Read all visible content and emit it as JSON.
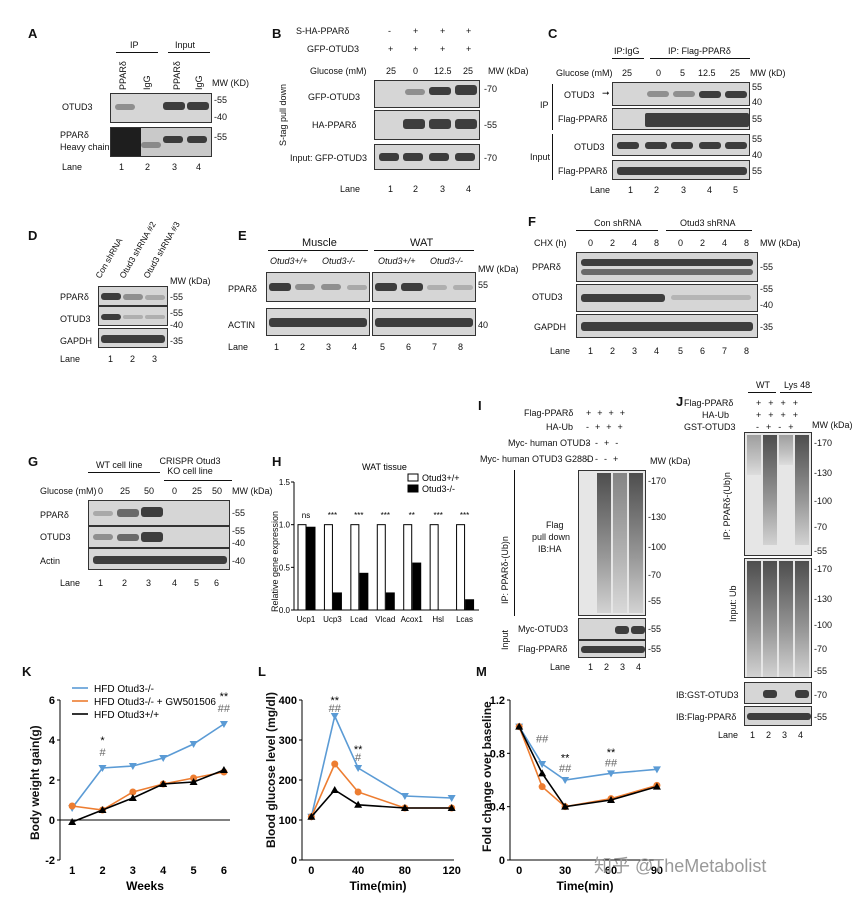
{
  "panels": [
    "A",
    "B",
    "C",
    "D",
    "E",
    "F",
    "G",
    "H",
    "I",
    "J",
    "K",
    "L",
    "M"
  ],
  "A": {
    "ip": "IP",
    "input": "Input",
    "cols": [
      "PPARδ",
      "IgG",
      "PPARδ",
      "IgG"
    ],
    "mw": "MW (KD)",
    "rows": [
      "OTUD3",
      "PPARδ",
      "Heavy chain"
    ],
    "mw55": "-55",
    "mw40": "-40",
    "mw55b": "-55",
    "lane": "Lane",
    "lanes": [
      "1",
      "2",
      "3",
      "4"
    ]
  },
  "B": {
    "r1": "S-HA-PPARδ",
    "r1v": [
      "-",
      "+",
      "+",
      "+"
    ],
    "r2": "GFP-OTUD3",
    "r2v": [
      "+",
      "+",
      "+",
      "+"
    ],
    "glu": "Glucose (mM)",
    "gluv": [
      "25",
      "0",
      "12.5",
      "25"
    ],
    "mw": "MW (kDa)",
    "side": "S-tag pull down",
    "rows": [
      "GFP-OTUD3",
      "HA-PPARδ",
      "Input:   GFP-OTUD3"
    ],
    "mws": [
      "-70",
      "-55",
      "-70"
    ],
    "lane": "Lane",
    "lanes": [
      "1",
      "2",
      "3",
      "4"
    ]
  },
  "C": {
    "ipigg": "IP:IgG",
    "ipflag": "IP: Flag-PPARδ",
    "glu": "Glucose (mM)",
    "gluv": [
      "25",
      "0",
      "5",
      "12.5",
      "25"
    ],
    "mw": "MW (kD)",
    "ip": "IP",
    "input": "Input",
    "rows": [
      "OTUD3",
      "Flag-PPARδ",
      "OTUD3",
      "Flag-PPARδ"
    ],
    "mws": [
      "55",
      "40",
      "55",
      "55",
      "40",
      "55"
    ],
    "lane": "Lane",
    "lanes": [
      "1",
      "2",
      "3",
      "4",
      "5"
    ]
  },
  "D": {
    "cols": [
      "Con shRNA",
      "Otud3 shRNA #2",
      "Otud3 shRNA #3"
    ],
    "mw": "MW (kDa)",
    "rows": [
      "PPARδ",
      "OTUD3",
      "GAPDH"
    ],
    "mws": [
      "-55",
      "-55",
      "-40",
      "-35"
    ],
    "lane": "Lane",
    "lanes": [
      "1",
      "2",
      "3"
    ]
  },
  "E": {
    "muscle": "Muscle",
    "wat": "WAT",
    "geno": [
      "Otud3+/+",
      "Otud3-/-",
      "Otud3+/+",
      "Otud3-/-"
    ],
    "mw": "MW (kDa)",
    "rows": [
      "PPARδ",
      "ACTIN"
    ],
    "mws": [
      "55",
      "40"
    ],
    "lane": "Lane",
    "lanes": [
      "1",
      "2",
      "3",
      "4",
      "5",
      "6",
      "7",
      "8"
    ]
  },
  "F": {
    "con": "Con shRNA",
    "otud": "Otud3 shRNA",
    "chx": "CHX (h)",
    "chxv": [
      "0",
      "2",
      "4",
      "8",
      "0",
      "2",
      "4",
      "8"
    ],
    "mw": "MW (kDa)",
    "rows": [
      "PPARδ",
      "OTUD3",
      "GAPDH"
    ],
    "mws": [
      "-55",
      "-55",
      "-40",
      "-35"
    ],
    "lane": "Lane",
    "lanes": [
      "1",
      "2",
      "3",
      "4",
      "5",
      "6",
      "7",
      "8"
    ]
  },
  "G": {
    "wt": "WT cell line",
    "ko": "CRISPR Otud3 KO cell line",
    "glu": "Glucose (mM)",
    "gluv": [
      "0",
      "25",
      "50",
      "0",
      "25",
      "50"
    ],
    "mw": "MW (kDa)",
    "rows": [
      "PPARδ",
      "OTUD3",
      "Actin"
    ],
    "mws": [
      "-55",
      "-55",
      "-40",
      "-40"
    ],
    "lane": "Lane",
    "lanes": [
      "1",
      "2",
      "3",
      "4",
      "5",
      "6"
    ]
  },
  "H": {
    "title": "WAT tissue",
    "ylabel": "Relative gene expression",
    "sig": [
      "ns",
      "***",
      "***",
      "***",
      "**",
      "***",
      "***"
    ]
  },
  "I": {
    "r1": "Flag-PPARδ",
    "r2": "HA-Ub",
    "r3": "Myc- human OTUD3",
    "r4": "Myc- human OTUD3 G288D",
    "mw": "MW (kDa)",
    "sidelabel": "IP: PPARδ-(Ub)n",
    "flag": "Flag",
    "pull": "pull down",
    "ib": "IB:HA",
    "input": "Input",
    "rows": [
      "Myc-OTUD3",
      "Flag-PPARδ"
    ],
    "mws": [
      "-170",
      "-130",
      "-100",
      "-70",
      "-55",
      "-55",
      "-55"
    ],
    "lane": "Lane",
    "lanes": [
      "1",
      "2",
      "3",
      "4"
    ]
  },
  "J": {
    "wt": "WT",
    "lys": "Lys 48",
    "r1": "Flag-PPARδ",
    "r2": "HA-Ub",
    "r3": "GST-OTUD3",
    "mw": "MW (kDa)",
    "side1": "IP: PPARδ-(Ub)n",
    "side2": "Input: Ub",
    "rows": [
      "IB:GST-OTUD3",
      "IB:Flag-PPARδ"
    ],
    "mws": [
      "-170",
      "-130",
      "-100",
      "-70",
      "-55",
      "-170",
      "-130",
      "-100",
      "-70",
      "-55",
      "-70",
      "-55"
    ],
    "lane": "Lane",
    "lanes": [
      "1",
      "2",
      "3",
      "4"
    ]
  },
  "K": {
    "ylabel": "Body weight gain(g)",
    "xlabel": "Weeks",
    "legend": [
      "HFD Otud3-/-",
      "HFD Otud3-/- + GW501506",
      "HFD Otud3+/+"
    ],
    "ann": [
      "*",
      "#",
      "**",
      "##"
    ]
  },
  "L": {
    "ylabel": "Blood glucose level (mg/dl)",
    "xlabel": "Time(min)",
    "ann": [
      "**",
      "##",
      "**",
      "#"
    ]
  },
  "M": {
    "ylabel": "Fold change over baseline",
    "xlabel": "Time(min)",
    "ann": [
      "##",
      "**",
      "##",
      "**",
      "##"
    ]
  },
  "watermark": "知乎 @TheMetabolist",
  "colors": {
    "blue": "#5b9bd5",
    "orange": "#ed7d31",
    "black": "#000000"
  },
  "chart_data": [
    {
      "type": "bar",
      "title": "WAT tissue",
      "ylabel": "Relative gene expression",
      "categories": [
        "Ucp1",
        "Ucp3",
        "Lcad",
        "Vlcad",
        "Acox1",
        "Hsl",
        "Lcas"
      ],
      "series": [
        {
          "name": "Otud3+/+",
          "values": [
            1,
            1,
            1,
            1,
            1,
            1,
            1
          ]
        },
        {
          "name": "Otud3-/-",
          "values": [
            0.97,
            0.2,
            0.43,
            0.2,
            0.55,
            0,
            0.12
          ]
        }
      ],
      "ylim": [
        0,
        1.5
      ]
    },
    {
      "type": "line",
      "xlabel": "Weeks",
      "ylabel": "Body weight gain(g)",
      "x": [
        1,
        2,
        3,
        4,
        5,
        6
      ],
      "ylim": [
        -2,
        6
      ],
      "series": [
        {
          "name": "HFD Otud3-/-",
          "values": [
            0.6,
            2.6,
            2.7,
            3.1,
            3.8,
            4.8
          ]
        },
        {
          "name": "HFD Otud3-/- + GW501506",
          "values": [
            0.7,
            0.5,
            1.4,
            1.8,
            2.1,
            2.4
          ]
        },
        {
          "name": "HFD Otud3+/+",
          "values": [
            -0.1,
            0.5,
            1.1,
            1.8,
            1.9,
            2.5
          ]
        }
      ]
    },
    {
      "type": "line",
      "xlabel": "Time(min)",
      "ylabel": "Blood glucose level (mg/dl)",
      "x": [
        0,
        20,
        40,
        80,
        120
      ],
      "ylim": [
        0,
        400
      ],
      "series": [
        {
          "name": "HFD Otud3-/-",
          "values": [
            108,
            360,
            230,
            160,
            155
          ]
        },
        {
          "name": "HFD Otud3-/- + GW501506",
          "values": [
            108,
            240,
            170,
            130,
            130
          ]
        },
        {
          "name": "HFD Otud3+/+",
          "values": [
            108,
            175,
            138,
            130,
            130
          ]
        }
      ]
    },
    {
      "type": "line",
      "xlabel": "Time(min)",
      "ylabel": "Fold change over baseline",
      "x": [
        0,
        15,
        30,
        60,
        90
      ],
      "ylim": [
        0,
        1.2
      ],
      "series": [
        {
          "name": "HFD Otud3-/-",
          "values": [
            1.0,
            0.72,
            0.6,
            0.65,
            0.68
          ]
        },
        {
          "name": "HFD Otud3-/- + GW501506",
          "values": [
            1.0,
            0.55,
            0.4,
            0.46,
            0.56
          ]
        },
        {
          "name": "HFD Otud3+/+",
          "values": [
            1.0,
            0.65,
            0.4,
            0.45,
            0.55
          ]
        }
      ]
    }
  ]
}
